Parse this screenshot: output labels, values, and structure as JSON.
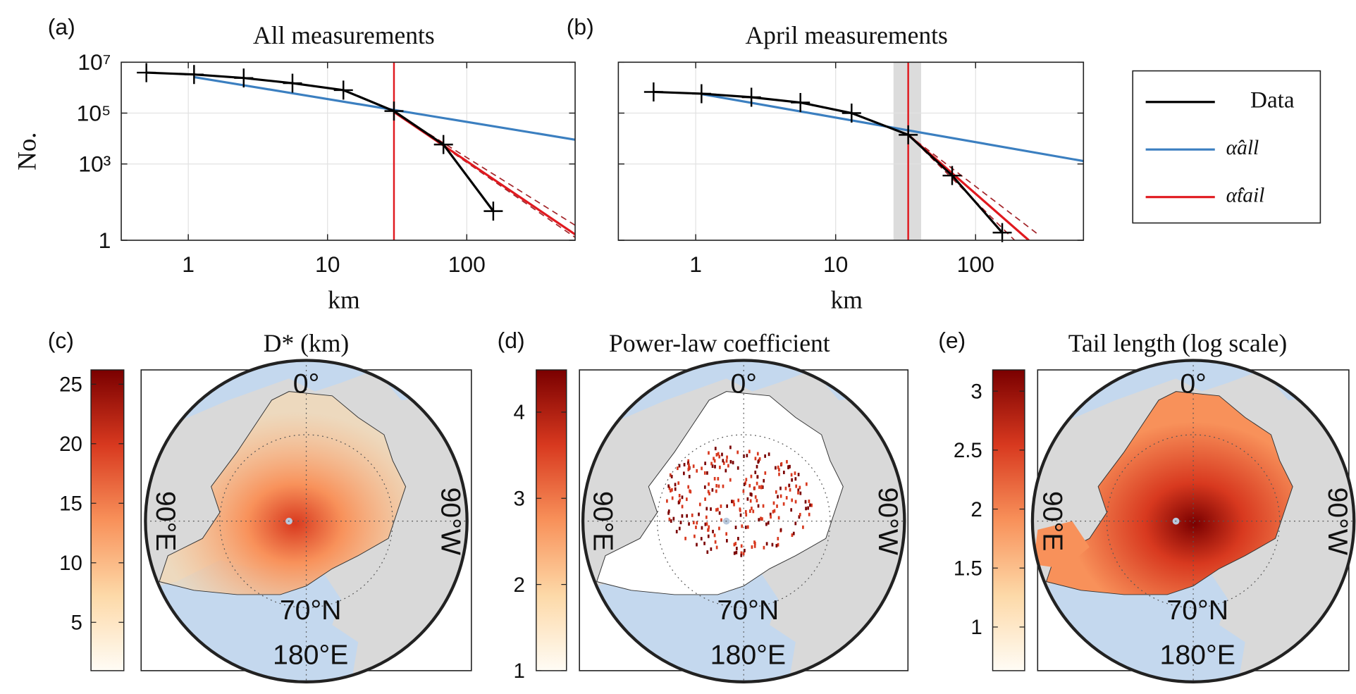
{
  "chart_data": [
    {
      "type": "line",
      "panel": "(a)",
      "title": "All measurements",
      "xlabel": "km",
      "ylabel": "No.",
      "log_x": true,
      "log_y": true,
      "grid": true,
      "xlim": [
        0.33,
        600
      ],
      "ylim": [
        1,
        10000000
      ],
      "xticks": [
        1,
        10,
        100
      ],
      "yticks": [
        1,
        {
          "value": 1000,
          "label": "10³"
        },
        {
          "value": 100000,
          "label": "10⁵"
        },
        {
          "value": 10000000,
          "label": "10⁷"
        }
      ],
      "threshold": 30,
      "threshold_color": "#e0191f",
      "series": [
        {
          "color": "#000000",
          "marker": "+",
          "x": [
            0.5,
            1.1,
            2.5,
            5.6,
            13,
            30,
            68,
            155
          ],
          "values": [
            3900000,
            3300000,
            2400000,
            1500000,
            800000,
            120000,
            5800,
            14
          ]
        },
        {
          "color": "#3b7fc0",
          "x": [
            1.1,
            600
          ],
          "values": [
            2600000,
            9000
          ]
        },
        {
          "color": "#e0191f",
          "x": [
            30,
            600
          ],
          "values": [
            110000,
            1.7
          ]
        },
        {
          "color": "#a3252a",
          "style": "dashed",
          "x": [
            30,
            600
          ],
          "values": [
            110000,
            3.9
          ]
        },
        {
          "color": "#a3252a",
          "style": "dashed",
          "x": [
            30,
            600
          ],
          "values": [
            110000,
            1.3
          ]
        }
      ]
    },
    {
      "type": "line",
      "panel": "(b)",
      "title": "April measurements",
      "xlabel": "km",
      "log_x": true,
      "log_y": true,
      "grid": true,
      "ytick_labels": false,
      "xlim": [
        0.28,
        590
      ],
      "ylim": [
        1,
        10000000
      ],
      "xticks": [
        1,
        10,
        100
      ],
      "yticks": [
        1,
        1000,
        100000,
        10000000
      ],
      "threshold": 33,
      "threshold_color": "#e0191f",
      "threshold_band": [
        25.9,
        40.8
      ],
      "legend": "outside right",
      "series": [
        {
          "name": "Data",
          "color": "#000000",
          "marker": "+",
          "x": [
            0.5,
            1.1,
            2.5,
            5.6,
            13,
            33,
            68,
            155
          ],
          "values": [
            680000,
            580000,
            420000,
            260000,
            100000,
            14000,
            350,
            2
          ]
        },
        {
          "name": "α̂all",
          "color": "#3b7fc0",
          "x": [
            1.1,
            590
          ],
          "values": [
            560000,
            1300
          ]
        },
        {
          "name": "α̂tail",
          "color": "#e0191f",
          "x": [
            33,
            240
          ],
          "values": [
            14000,
            1
          ]
        },
        {
          "color": "#a3252a",
          "style": "dashed",
          "x": [
            33,
            280
          ],
          "values": [
            14000,
            1.7
          ]
        },
        {
          "color": "#a3252a",
          "style": "dashed",
          "x": [
            33,
            190
          ],
          "values": [
            14000,
            1
          ]
        }
      ]
    },
    {
      "type": "map",
      "panel": "(c)",
      "title": "D* (km)",
      "clim": [
        0.94,
        26.2
      ],
      "cticks": [
        5,
        10,
        15,
        20,
        25
      ],
      "colormap": [
        "#fffcf5",
        "#fdd9a8",
        "#f8915a",
        "#d8391f",
        "#7a0000"
      ],
      "labels": [
        "0°",
        "90°W",
        "90°E",
        "70°N",
        "180°E"
      ]
    },
    {
      "type": "map",
      "panel": "(d)",
      "title": "Power-law coefficient",
      "clim": [
        1,
        4.49
      ],
      "cticks": [
        1,
        2,
        3,
        4
      ],
      "colormap": [
        "#fffcf5",
        "#fdd9a8",
        "#f8915a",
        "#d8391f",
        "#7a0000"
      ],
      "labels": [
        "0°",
        "90°W",
        "90°E",
        "70°N",
        "180°E"
      ]
    },
    {
      "type": "map",
      "panel": "(e)",
      "title": "Tail length (log scale)",
      "clim": [
        0.63,
        3.18
      ],
      "cticks": [
        1,
        1.5,
        2,
        2.5,
        3
      ],
      "colormap": [
        "#fffcf5",
        "#fdd9a8",
        "#f8915a",
        "#d8391f",
        "#7a0000"
      ],
      "labels": [
        "0°",
        "90°W",
        "90°E",
        "70°N",
        "180°E"
      ]
    }
  ]
}
